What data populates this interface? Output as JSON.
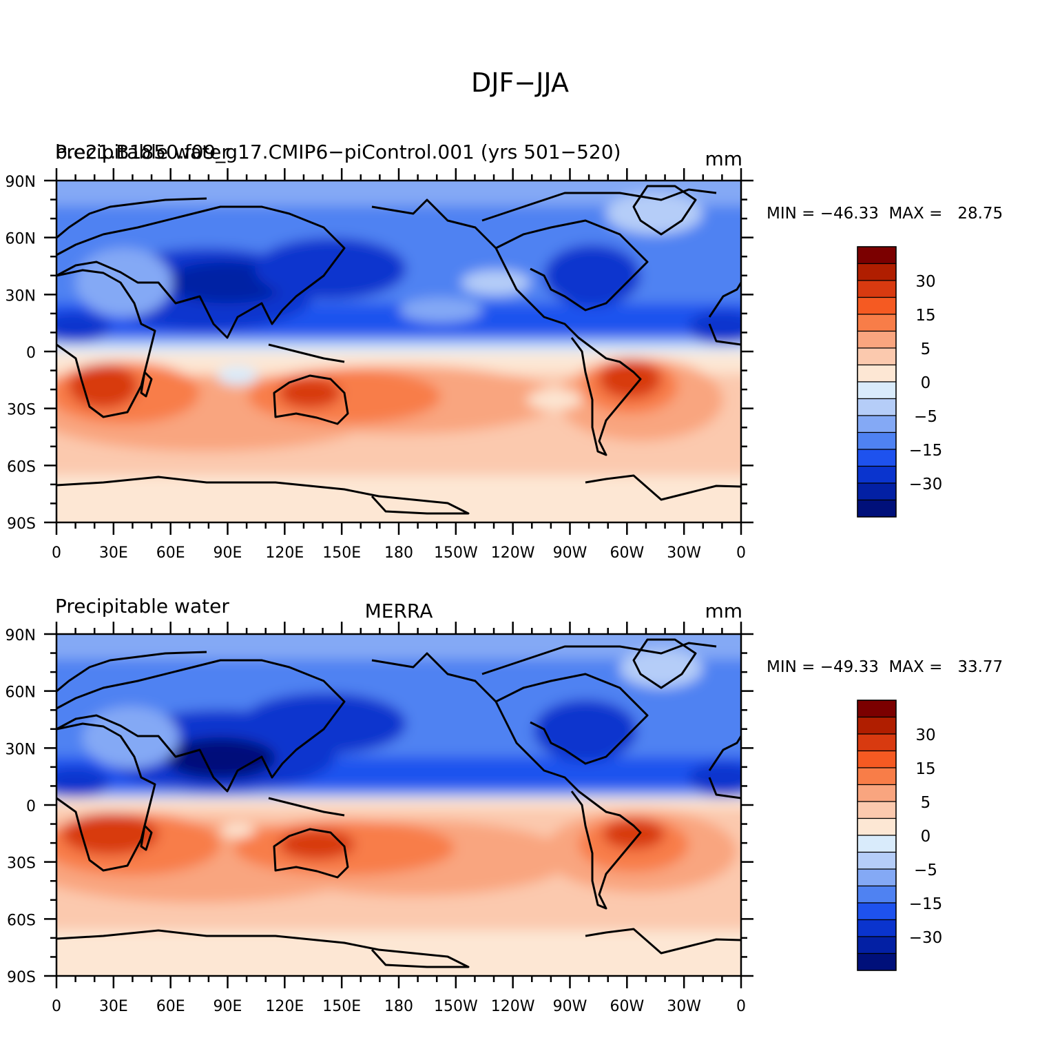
{
  "figure": {
    "title": "DJF−JJA"
  },
  "colormap": {
    "colors": [
      "#7b0000",
      "#b01e00",
      "#d83a10",
      "#f55a22",
      "#f87d48",
      "#f9a57f",
      "#fbc9ae",
      "#fde7d4",
      "#d9ebfb",
      "#b5cdf8",
      "#84a9f5",
      "#4f82f2",
      "#1e52ee",
      "#0a34ce",
      "#0320a4",
      "#00107a"
    ],
    "labels": [
      {
        "text": "30",
        "after": 1
      },
      {
        "text": "15",
        "after": 3
      },
      {
        "text": "5",
        "after": 5
      },
      {
        "text": "0",
        "after": 7
      },
      {
        "text": "−5",
        "after": 9
      },
      {
        "text": "−15",
        "after": 11
      },
      {
        "text": "−30",
        "after": 13
      }
    ]
  },
  "axes": {
    "y_ticks": [
      "90N",
      "60N",
      "30N",
      "0",
      "30S",
      "60S",
      "90S"
    ],
    "x_ticks": [
      "0",
      "30E",
      "60E",
      "90E",
      "120E",
      "150E",
      "180",
      "150W",
      "120W",
      "90W",
      "60W",
      "30W",
      "0"
    ]
  },
  "panels": [
    {
      "title_left": "Precipitable water",
      "title_overlap": "b.e21.B1850.f09_g17.CMIP6−piControl.001 (yrs 501−520)",
      "title_center": "",
      "units": "mm",
      "stats": "MIN = −46.33  MAX =   28.75"
    },
    {
      "title_left": "Precipitable water",
      "title_overlap": "",
      "title_center": "MERRA",
      "units": "mm",
      "stats": "MIN = −49.33  MAX =   33.77"
    }
  ]
}
